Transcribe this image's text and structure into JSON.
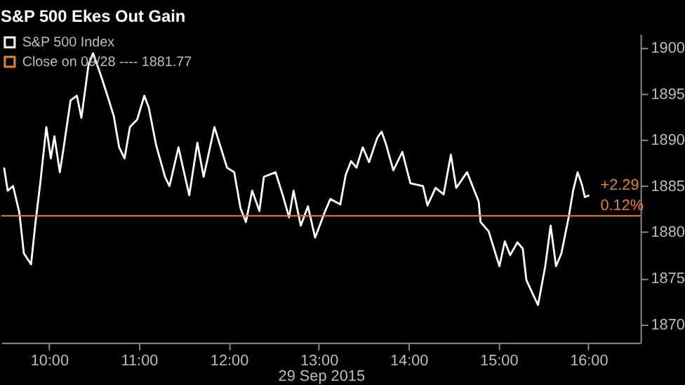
{
  "chart_data": {
    "type": "line",
    "title": "S&P 500 Ekes Out Gain",
    "xlabel": "29 Sep 2015",
    "x": [
      9.5,
      9.54,
      9.6,
      9.67,
      9.72,
      9.8,
      9.85,
      9.9,
      9.97,
      10.02,
      10.06,
      10.12,
      10.16,
      10.24,
      10.31,
      10.36,
      10.44,
      10.49,
      10.57,
      10.65,
      10.72,
      10.78,
      10.84,
      10.9,
      10.98,
      11.06,
      11.11,
      11.19,
      11.29,
      11.34,
      11.44,
      11.49,
      11.56,
      11.65,
      11.72,
      11.84,
      11.9,
      11.98,
      12.06,
      12.13,
      12.19,
      12.26,
      12.34,
      12.39,
      12.52,
      12.6,
      12.67,
      12.72,
      12.8,
      12.88,
      12.96,
      13.06,
      13.13,
      13.24,
      13.3,
      13.36,
      13.42,
      13.49,
      13.56,
      13.65,
      13.7,
      13.75,
      13.83,
      13.93,
      14.02,
      14.16,
      14.21,
      14.3,
      14.39,
      14.47,
      14.53,
      14.65,
      14.78,
      14.8,
      14.89,
      15.01,
      15.07,
      15.13,
      15.21,
      15.27,
      15.31,
      15.39,
      15.44,
      15.52,
      15.58,
      15.64,
      15.7,
      15.78,
      15.83,
      15.88,
      15.93,
      15.96,
      16.01
    ],
    "series": [
      {
        "name": "S&P 500 Index",
        "color": "#ffffff",
        "values": [
          1887.0,
          1884.5,
          1885.0,
          1882.1,
          1877.7,
          1876.5,
          1881.1,
          1885.1,
          1891.4,
          1888.0,
          1890.4,
          1886.5,
          1889.0,
          1894.3,
          1894.8,
          1892.4,
          1898.2,
          1899.4,
          1897.2,
          1894.8,
          1892.6,
          1889.2,
          1888.0,
          1891.4,
          1892.2,
          1894.8,
          1893.5,
          1889.5,
          1886.0,
          1885.0,
          1889.2,
          1887.0,
          1884.0,
          1889.7,
          1886.0,
          1891.4,
          1889.5,
          1887.0,
          1886.5,
          1882.6,
          1881.1,
          1884.5,
          1882.3,
          1886.0,
          1886.5,
          1884.0,
          1881.6,
          1884.5,
          1880.7,
          1882.8,
          1879.4,
          1882.0,
          1883.6,
          1883.0,
          1886.2,
          1887.7,
          1887.0,
          1889.2,
          1887.6,
          1890.2,
          1890.9,
          1889.5,
          1886.7,
          1888.7,
          1885.3,
          1885.0,
          1882.9,
          1884.8,
          1884.1,
          1888.4,
          1884.8,
          1886.5,
          1883.3,
          1881.1,
          1880.1,
          1876.3,
          1879.0,
          1877.5,
          1878.9,
          1878.2,
          1874.8,
          1873.1,
          1872.1,
          1876.3,
          1880.7,
          1876.3,
          1877.7,
          1881.6,
          1884.5,
          1886.5,
          1885.1,
          1883.8,
          1884.0
        ]
      }
    ],
    "ref_lines": [
      {
        "axis": "y",
        "value": 1881.77,
        "label": "Close on 09/28 ---- 1881.77",
        "color": "#e8822a"
      }
    ],
    "annotations": [
      {
        "text": "+2.29",
        "x": 16.01,
        "y": 1884.0
      },
      {
        "text": "0.12%",
        "x": 16.01,
        "y": 1881.77
      }
    ],
    "xlim": [
      9.47,
      16.58
    ],
    "xticks": [
      {
        "value": 10,
        "label": "10:00"
      },
      {
        "value": 11,
        "label": "11:00"
      },
      {
        "value": 12,
        "label": "12:00"
      },
      {
        "value": 13,
        "label": "13:00"
      },
      {
        "value": 14,
        "label": "14:00"
      },
      {
        "value": 15,
        "label": "15:00"
      },
      {
        "value": 16,
        "label": "16:00"
      }
    ],
    "ylim": [
      1868,
      1901.5
    ],
    "yticks": [
      1870,
      1875,
      1880,
      1885,
      1890,
      1895,
      1900
    ],
    "grid": false,
    "legend": "top left",
    "marker": "none",
    "line_style": "solid"
  }
}
